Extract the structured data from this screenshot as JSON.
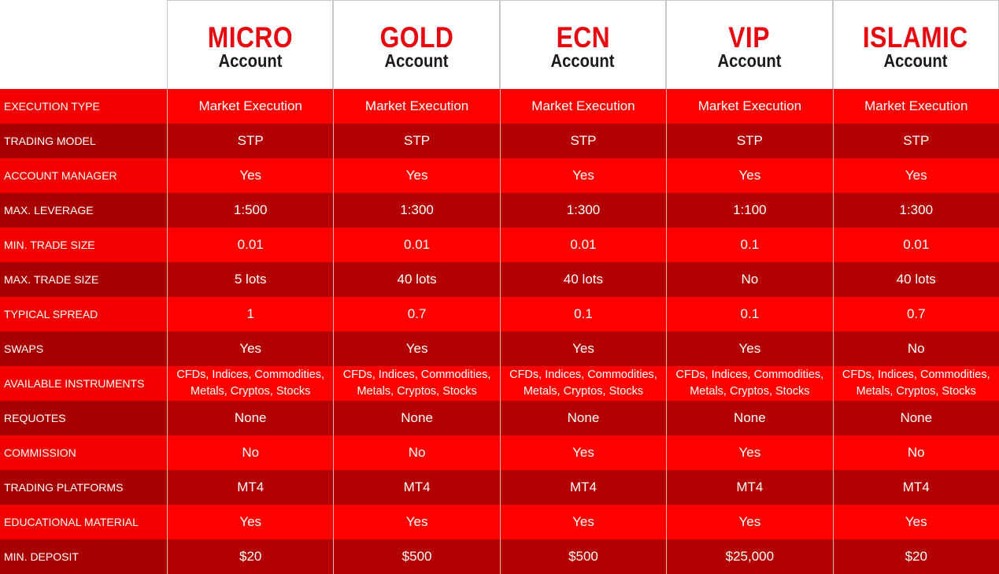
{
  "header": {
    "columns": [
      {
        "name": "MICRO",
        "subtitle": "Account"
      },
      {
        "name": "GOLD",
        "subtitle": "Account"
      },
      {
        "name": "ECN",
        "subtitle": "Account"
      },
      {
        "name": "VIP",
        "subtitle": "Account"
      },
      {
        "name": "ISLAMIC",
        "subtitle": "Account"
      }
    ]
  },
  "table": {
    "rows": [
      {
        "label": "EXECUTION TYPE",
        "cells": [
          "Market Execution",
          "Market Execution",
          "Market Execution",
          "Market Execution",
          "Market Execution"
        ]
      },
      {
        "label": "TRADING MODEL",
        "cells": [
          "STP",
          "STP",
          "STP",
          "STP",
          "STP"
        ]
      },
      {
        "label": "ACCOUNT MANAGER",
        "cells": [
          "Yes",
          "Yes",
          "Yes",
          "Yes",
          "Yes"
        ]
      },
      {
        "label": "MAX. LEVERAGE",
        "cells": [
          "1:500",
          "1:300",
          "1:300",
          "1:100",
          "1:300"
        ]
      },
      {
        "label": "MIN. TRADE SIZE",
        "cells": [
          "0.01",
          "0.01",
          "0.01",
          "0.1",
          "0.01"
        ]
      },
      {
        "label": "MAX. TRADE SIZE",
        "cells": [
          "5 lots",
          "40 lots",
          "40 lots",
          "No",
          "40 lots"
        ]
      },
      {
        "label": "TYPICAL SPREAD",
        "cells": [
          "1",
          "0.7",
          "0.1",
          "0.1",
          "0.7"
        ]
      },
      {
        "label": "SWAPS",
        "cells": [
          "Yes",
          "Yes",
          "Yes",
          "Yes",
          "No"
        ]
      },
      {
        "label": "AVAILABLE INSTRUMENTS",
        "cells": [
          "CFDs, Indices, Commodities, Metals, Cryptos, Stocks",
          "CFDs, Indices, Commodities, Metals, Cryptos, Stocks",
          "CFDs, Indices, Commodities, Metals, Cryptos, Stocks",
          "CFDs, Indices, Commodities, Metals, Cryptos, Stocks",
          "CFDs, Indices, Commodities, Metals, Cryptos, Stocks"
        ]
      },
      {
        "label": "REQUOTES",
        "cells": [
          "None",
          "None",
          "None",
          "None",
          "None"
        ]
      },
      {
        "label": "COMMISSION",
        "cells": [
          "No",
          "No",
          "Yes",
          "Yes",
          "No"
        ]
      },
      {
        "label": "TRADING PLATFORMS",
        "cells": [
          "MT4",
          "MT4",
          "MT4",
          "MT4",
          "MT4"
        ]
      },
      {
        "label": "EDUCATIONAL MATERIAL",
        "cells": [
          "Yes",
          "Yes",
          "Yes",
          "Yes",
          "Yes"
        ]
      },
      {
        "label": "MIN. DEPOSIT",
        "cells": [
          "$20",
          "$500",
          "$500",
          "$25,000",
          "$20"
        ]
      }
    ]
  }
}
